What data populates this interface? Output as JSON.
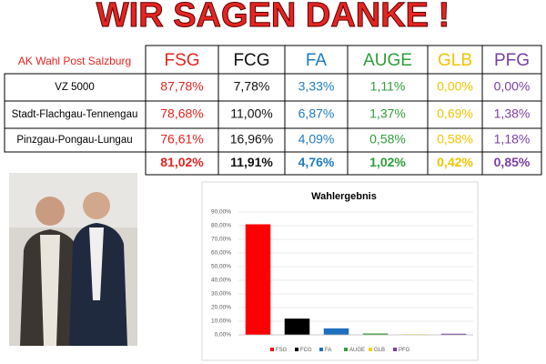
{
  "title": "WIR SAGEN DANKE !",
  "table": {
    "corner": "AK Wahl Post Salzburg",
    "columns": [
      "FSG",
      "FCG",
      "FA",
      "AUGE",
      "GLB",
      "PFG"
    ],
    "colors": [
      "#e52421",
      "#111111",
      "#1f7bbf",
      "#2e9e3a",
      "#f0c400",
      "#7b3fa0"
    ],
    "rows": [
      {
        "label": "VZ 5000",
        "cells": [
          "87,78%",
          "7,78%",
          "3,33%",
          "1,11%",
          "0,00%",
          "0,00%"
        ]
      },
      {
        "label": "Stadt-Flachgau-Tennengau",
        "cells": [
          "78,68%",
          "11,00%",
          "6,87%",
          "1,37%",
          "0,69%",
          "1,38%"
        ]
      },
      {
        "label": "Pinzgau-Pongau-Lungau",
        "cells": [
          "76,61%",
          "16,96%",
          "4,09%",
          "0,58%",
          "0,58%",
          "1,18%"
        ]
      }
    ],
    "totals": [
      "81,02%",
      "11,91%",
      "4,76%",
      "1,02%",
      "0,42%",
      "0,85%"
    ]
  },
  "chart_data": {
    "type": "bar",
    "title": "Wahlergebnis",
    "categories": [
      "FSG",
      "FCG",
      "FA",
      "AUGE",
      "GLB",
      "PFG"
    ],
    "values": [
      81.02,
      11.91,
      4.76,
      1.02,
      0.42,
      0.85
    ],
    "colors": [
      "#ff0000",
      "#000000",
      "#1f6fbf",
      "#3a9c3a",
      "#f5d000",
      "#7b3fa0"
    ],
    "ylim": [
      0,
      90
    ],
    "yticks": [
      {
        "value": 0,
        "label": "0,00%"
      },
      {
        "value": 10,
        "label": "10,00%"
      },
      {
        "value": 20,
        "label": "20,00%"
      },
      {
        "value": 30,
        "label": "30,00%"
      },
      {
        "value": 40,
        "label": "40,00%"
      },
      {
        "value": 50,
        "label": "50,00%"
      },
      {
        "value": 60,
        "label": "60,00%"
      },
      {
        "value": 70,
        "label": "70,00%"
      },
      {
        "value": 80,
        "label": "80,00%"
      },
      {
        "value": 90,
        "label": "90,00%"
      }
    ],
    "grid": true,
    "legend": "bottom"
  }
}
